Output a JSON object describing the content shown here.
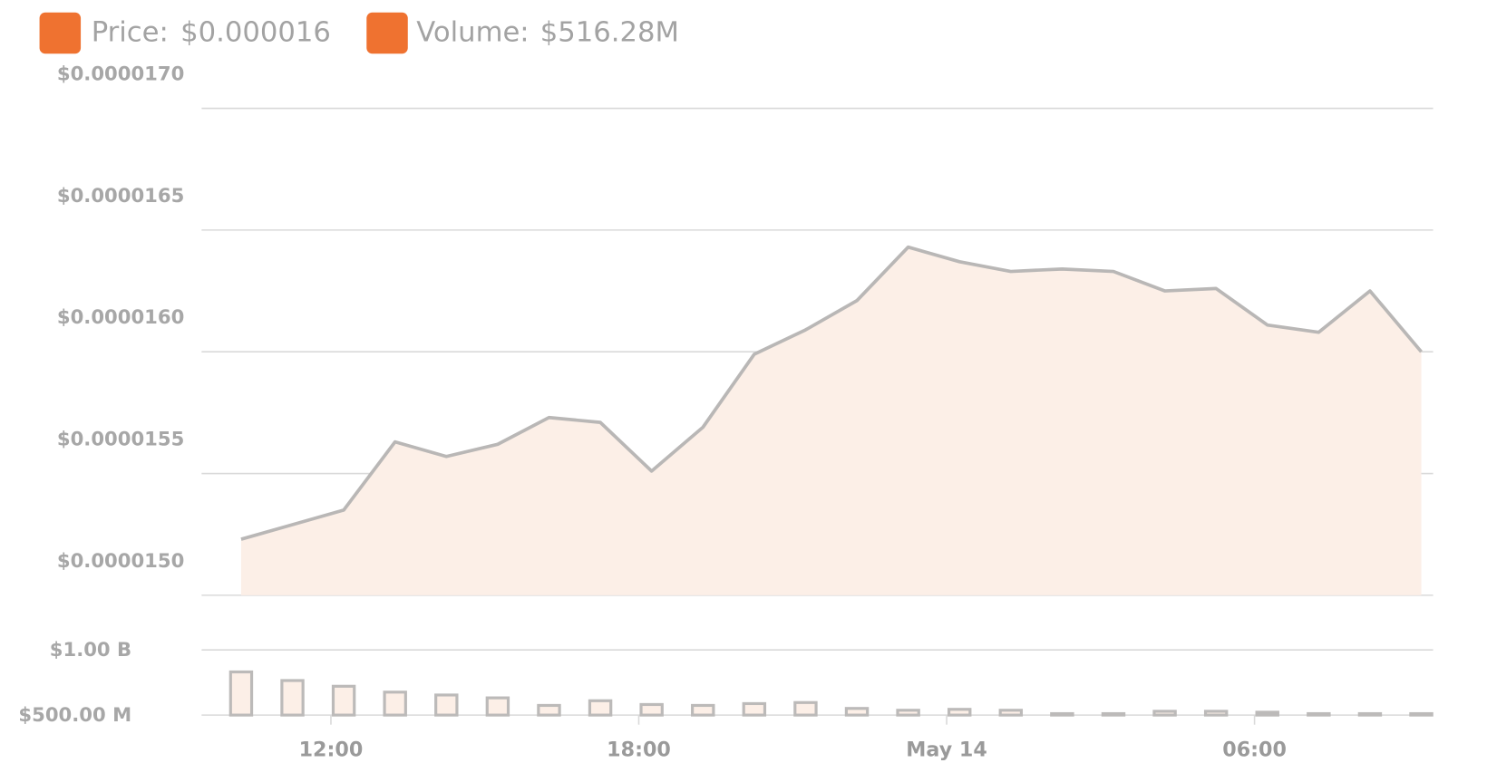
{
  "legend": [
    {
      "label": "Price:",
      "value": "$0.000016",
      "color": "#ef7230"
    },
    {
      "label": "Volume:",
      "value": "$516.28M",
      "color": "#ef7230"
    }
  ],
  "chart_data": [
    {
      "type": "area",
      "x": [
        10.25,
        11.25,
        12.25,
        13.25,
        14.25,
        15.25,
        16.25,
        17.25,
        18.25,
        19.25,
        20.25,
        21.25,
        22.25,
        23.25,
        24.25,
        25.25,
        26.25,
        27.25,
        28.25,
        29.25,
        30.25,
        31.25,
        32.25,
        33.25
      ],
      "values": [
        1.523e-05,
        1.529e-05,
        1.535e-05,
        1.563e-05,
        1.557e-05,
        1.562e-05,
        1.573e-05,
        1.571e-05,
        1.551e-05,
        1.569e-05,
        1.599e-05,
        1.609e-05,
        1.621e-05,
        1.643e-05,
        1.637e-05,
        1.633e-05,
        1.634e-05,
        1.633e-05,
        1.625e-05,
        1.626e-05,
        1.611e-05,
        1.608e-05,
        1.625e-05,
        1.6e-05
      ],
      "color": "#b9b7b6",
      "fill": "#fcefe7",
      "xlim": [
        9.48,
        33.48
      ],
      "ylim": [
        1.5e-05,
        1.7e-05
      ],
      "yticks": [
        {
          "value": 1.5e-05,
          "label": "$0.0000150"
        },
        {
          "value": 1.55e-05,
          "label": "$0.0000155"
        },
        {
          "value": 1.6e-05,
          "label": "$0.0000160"
        },
        {
          "value": 1.65e-05,
          "label": "$0.0000165"
        },
        {
          "value": 1.7e-05,
          "label": "$0.0000170"
        }
      ],
      "grid": true
    },
    {
      "type": "bar",
      "x": [
        10.25,
        11.25,
        12.25,
        13.25,
        14.25,
        15.25,
        16.25,
        17.25,
        18.25,
        19.25,
        20.25,
        21.25,
        22.25,
        23.25,
        24.25,
        25.25,
        26.25,
        27.25,
        28.25,
        29.25,
        30.25,
        31.25,
        32.25,
        33.25
      ],
      "values": [
        831,
        765,
        721,
        676,
        654,
        632,
        574,
        610,
        581,
        574,
        588,
        596,
        551,
        537,
        544,
        537,
        507,
        507,
        529,
        529,
        522,
        507,
        503,
        503
      ],
      "color": "#fcefe7",
      "stroke": "#bcbab9",
      "xlim": [
        9.48,
        33.48
      ],
      "ylim": [
        500,
        1000
      ],
      "yticks": [
        {
          "value": 500,
          "label": "$500.00 M"
        },
        {
          "value": 1000,
          "label": "$1.00 B"
        }
      ],
      "xticks": [
        {
          "value": 12,
          "label": "12:00"
        },
        {
          "value": 18,
          "label": "18:00"
        },
        {
          "value": 24,
          "label": "May 14"
        },
        {
          "value": 30,
          "label": "06:00"
        }
      ],
      "grid": true
    }
  ]
}
